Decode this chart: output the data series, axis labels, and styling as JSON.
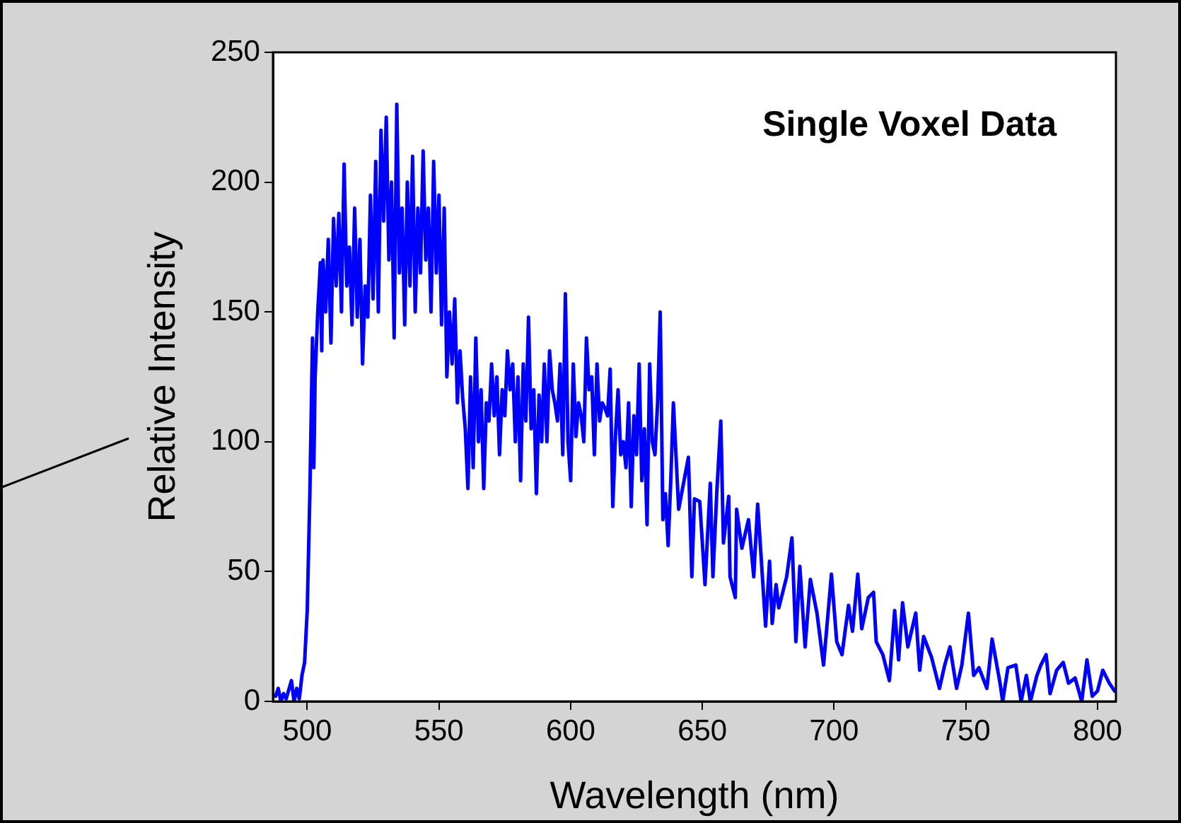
{
  "chart_data": {
    "type": "line",
    "title": "Single Voxel Data",
    "xlabel": "Wavelength (nm)",
    "ylabel": "Relative Intensity",
    "xlim": [
      487,
      807
    ],
    "xticks": [
      500,
      550,
      600,
      650,
      700,
      750,
      800
    ],
    "ylim": [
      0,
      250
    ],
    "yticks": [
      0,
      50,
      100,
      150,
      200,
      250
    ],
    "legend": false,
    "marker": "none",
    "line_style": "solid",
    "series": [
      {
        "color": "#0000ff",
        "x": [
          488,
          489,
          490,
          491,
          492,
          494,
          495,
          496,
          497,
          498,
          499,
          500,
          501,
          502,
          502.5,
          503,
          504,
          505,
          505.5,
          506,
          507,
          508,
          509,
          510,
          511,
          512,
          513,
          514,
          515,
          516,
          517,
          518,
          519,
          520,
          521,
          522,
          523,
          524,
          525,
          526,
          527,
          528,
          529,
          530,
          531,
          532,
          533,
          534,
          535,
          536,
          537,
          538,
          539,
          540,
          541,
          542,
          543,
          544,
          545,
          546,
          547,
          548,
          549,
          550,
          551,
          552,
          553,
          554,
          555,
          556,
          557,
          558,
          559,
          560,
          561,
          562,
          563,
          564,
          565,
          566,
          567,
          568,
          569,
          570,
          571,
          572,
          573,
          574,
          575,
          576,
          577,
          578,
          579,
          580,
          581,
          582,
          583,
          584,
          585,
          586,
          587,
          588,
          589,
          590,
          591,
          592,
          593,
          594,
          595,
          596,
          597,
          598,
          599,
          600,
          601,
          602,
          603,
          604,
          605,
          606,
          607,
          608,
          609,
          610,
          611,
          612,
          613,
          614,
          615,
          616,
          617,
          618,
          619,
          620,
          621,
          622,
          623,
          624,
          625,
          626,
          627,
          628,
          629,
          630,
          631,
          632,
          633,
          634,
          635,
          636,
          637,
          638,
          639,
          641,
          644.7,
          646,
          647,
          649,
          651,
          653,
          654,
          655.5,
          657,
          658,
          660,
          660.5,
          662.5,
          663,
          665,
          667.5,
          669.5,
          671,
          674,
          675.5,
          676.5,
          678,
          679,
          682,
          684,
          685.5,
          687,
          689,
          691,
          693.5,
          696,
          699,
          701,
          703,
          705.5,
          707,
          709,
          710.5,
          713,
          715,
          716,
          718.5,
          721,
          723,
          724.5,
          726,
          728,
          731,
          732.5,
          734,
          737,
          740,
          742,
          744,
          746.5,
          748.5,
          751,
          753,
          755,
          758,
          760,
          763,
          764,
          766,
          769,
          771,
          773,
          774.5,
          777,
          778.5,
          780.5,
          782,
          784.5,
          787,
          789,
          791.5,
          794,
          796,
          798,
          800,
          802,
          804.5,
          806.5
        ],
        "values": [
          2,
          5,
          0,
          3,
          1,
          8,
          0,
          5,
          1,
          10,
          15,
          35,
          80,
          140,
          90,
          125,
          150,
          169,
          135,
          170,
          150,
          178,
          138,
          186,
          160,
          188,
          150,
          207,
          160,
          175,
          145,
          190,
          148,
          178,
          130,
          160,
          148,
          195,
          155,
          208,
          150,
          220,
          185,
          225,
          170,
          200,
          140,
          230,
          165,
          190,
          145,
          200,
          160,
          210,
          150,
          190,
          165,
          212,
          170,
          190,
          150,
          208,
          165,
          195,
          145,
          190,
          125,
          150,
          130,
          155,
          115,
          135,
          117,
          105,
          82,
          125,
          90,
          140,
          100,
          120,
          82,
          115,
          108,
          130,
          110,
          125,
          95,
          120,
          110,
          135,
          120,
          130,
          100,
          125,
          85,
          130,
          108,
          148,
          105,
          120,
          80,
          118,
          100,
          130,
          100,
          135,
          120,
          115,
          108,
          130,
          95,
          157,
          100,
          85,
          130,
          102,
          115,
          110,
          100,
          140,
          120,
          125,
          95,
          130,
          108,
          115,
          113,
          110,
          128,
          75,
          102,
          120,
          95,
          100,
          90,
          115,
          75,
          110,
          95,
          130,
          85,
          105,
          68,
          130,
          100,
          95,
          115,
          150,
          70,
          80,
          60,
          85,
          115,
          74,
          94,
          48,
          78,
          77,
          45,
          84,
          48,
          81,
          108,
          61,
          79,
          48,
          40,
          74,
          59,
          70,
          48,
          76,
          29,
          54,
          30,
          45,
          36,
          48,
          63,
          23,
          52,
          21,
          47,
          34,
          14,
          49,
          23,
          18,
          37,
          27,
          49,
          28,
          40,
          42,
          23,
          18,
          8,
          35,
          16,
          38,
          21,
          34,
          12,
          25,
          17,
          5,
          14,
          21,
          5,
          14,
          34,
          10,
          13,
          5,
          24,
          7,
          0,
          13,
          14,
          0,
          10,
          0,
          10,
          14,
          18,
          3,
          12,
          15,
          7,
          9,
          0,
          16,
          2,
          4,
          12,
          7,
          4
        ]
      }
    ]
  }
}
